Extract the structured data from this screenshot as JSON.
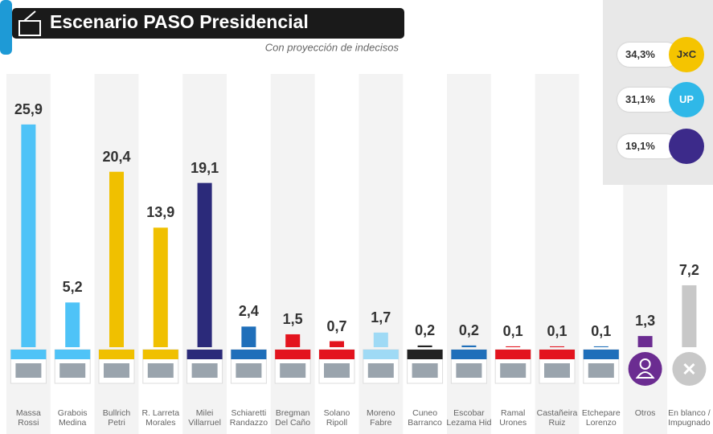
{
  "chart_data": {
    "type": "bar",
    "title": "Escenario PASO Presidencial",
    "subtitle": "Con proyección de indecisos",
    "categories": [
      "Massa\nRossi",
      "Grabois\nMedina",
      "Bullrich\nPetri",
      "R. Larreta\nMorales",
      "Milei\nVillarruel",
      "Schiaretti\nRandazzo",
      "Bregman\nDel Caño",
      "Solano\nRipoll",
      "Moreno\nFabre",
      "Cuneo\nBarranco",
      "Escobar\nLezama Hid",
      "Ramal\nUrones",
      "Castañeira\nRuiz",
      "Etchepare\nLorenzo",
      "Otros",
      "En blanco /\nImpugnado"
    ],
    "values": [
      25.9,
      5.2,
      20.4,
      13.9,
      19.1,
      2.4,
      1.5,
      0.7,
      1.7,
      0.2,
      0.2,
      0.1,
      0.1,
      0.1,
      1.3,
      7.2
    ],
    "value_labels": [
      "25,9",
      "5,2",
      "20,4",
      "13,9",
      "19,1",
      "2,4",
      "1,5",
      "0,7",
      "1,7",
      "0,2",
      "0,2",
      "0,1",
      "0,1",
      "0,1",
      "1,3",
      "7,2"
    ],
    "colors": [
      "#4fc3f7",
      "#4fc3f7",
      "#f0c000",
      "#f0c000",
      "#2b2a7a",
      "#1f6fba",
      "#e3141e",
      "#e3141e",
      "#9fdaf5",
      "#222222",
      "#1f6fba",
      "#e3141e",
      "#e3141e",
      "#1f6fba",
      "#6b2c91",
      "#c8c8c8"
    ],
    "parties": [
      {
        "label": "34,3%",
        "logo": "J×C",
        "color": "#f5c400"
      },
      {
        "label": "31,1%",
        "logo": "UP",
        "color": "#2fb8e8"
      },
      {
        "label": "19,1%",
        "color": "#3c2a8a"
      }
    ]
  }
}
